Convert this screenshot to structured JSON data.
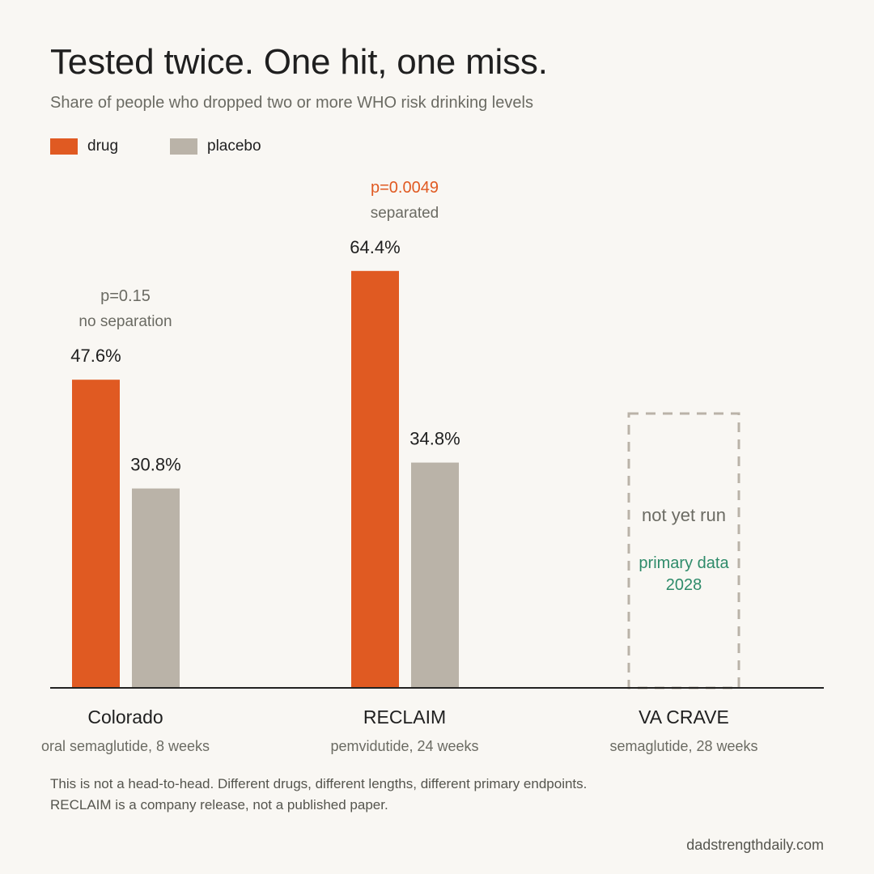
{
  "title": "Tested twice. One hit, one miss.",
  "subtitle": "Share of people who dropped two or more WHO risk drinking levels",
  "legend": [
    {
      "label": "drug",
      "color": "#e05a22"
    },
    {
      "label": "placebo",
      "color": "#bab3a8"
    }
  ],
  "note": "This is not a head-to-head. Different drugs, different lengths, different primary endpoints. RECLAIM is a company release, not a published paper.",
  "credit": "dadstrengthdaily.com",
  "colors": {
    "drug": "#e05a22",
    "placebo": "#bab3a8",
    "pending_text": "#6b6b63",
    "pending_date": "#2e8b6a",
    "pvalue_significant": "#e05a22",
    "pvalue_not_significant": "#6b6b63",
    "axis": "#222222",
    "dashed_border": "#bab3a8"
  },
  "chart_data": {
    "type": "bar",
    "categories": [
      "Colorado",
      "RECLAIM",
      "VA CRAVE"
    ],
    "category_sublabels": [
      "oral semaglutide, 8 weeks",
      "pemvidutide, 24 weeks",
      "semaglutide, 28 weeks"
    ],
    "series": [
      {
        "name": "drug",
        "values": [
          47.6,
          64.4,
          null
        ]
      },
      {
        "name": "placebo",
        "values": [
          30.8,
          34.8,
          null
        ]
      }
    ],
    "value_labels": {
      "drug": [
        "47.6%",
        "64.4%",
        null
      ],
      "placebo": [
        "30.8%",
        "34.8%",
        null
      ]
    },
    "annotations": [
      {
        "category": "Colorado",
        "pvalue": "p=0.15",
        "verdict": "no separation",
        "significant": false
      },
      {
        "category": "RECLAIM",
        "pvalue": "p=0.0049",
        "verdict": "separated",
        "significant": true
      }
    ],
    "pending": {
      "category": "VA CRAVE",
      "status": "not yet run",
      "data_line1": "primary data",
      "data_line2": "2028"
    },
    "unit": "%",
    "ylim": [
      0,
      100
    ],
    "grid": false,
    "legend_position": "top-left"
  }
}
